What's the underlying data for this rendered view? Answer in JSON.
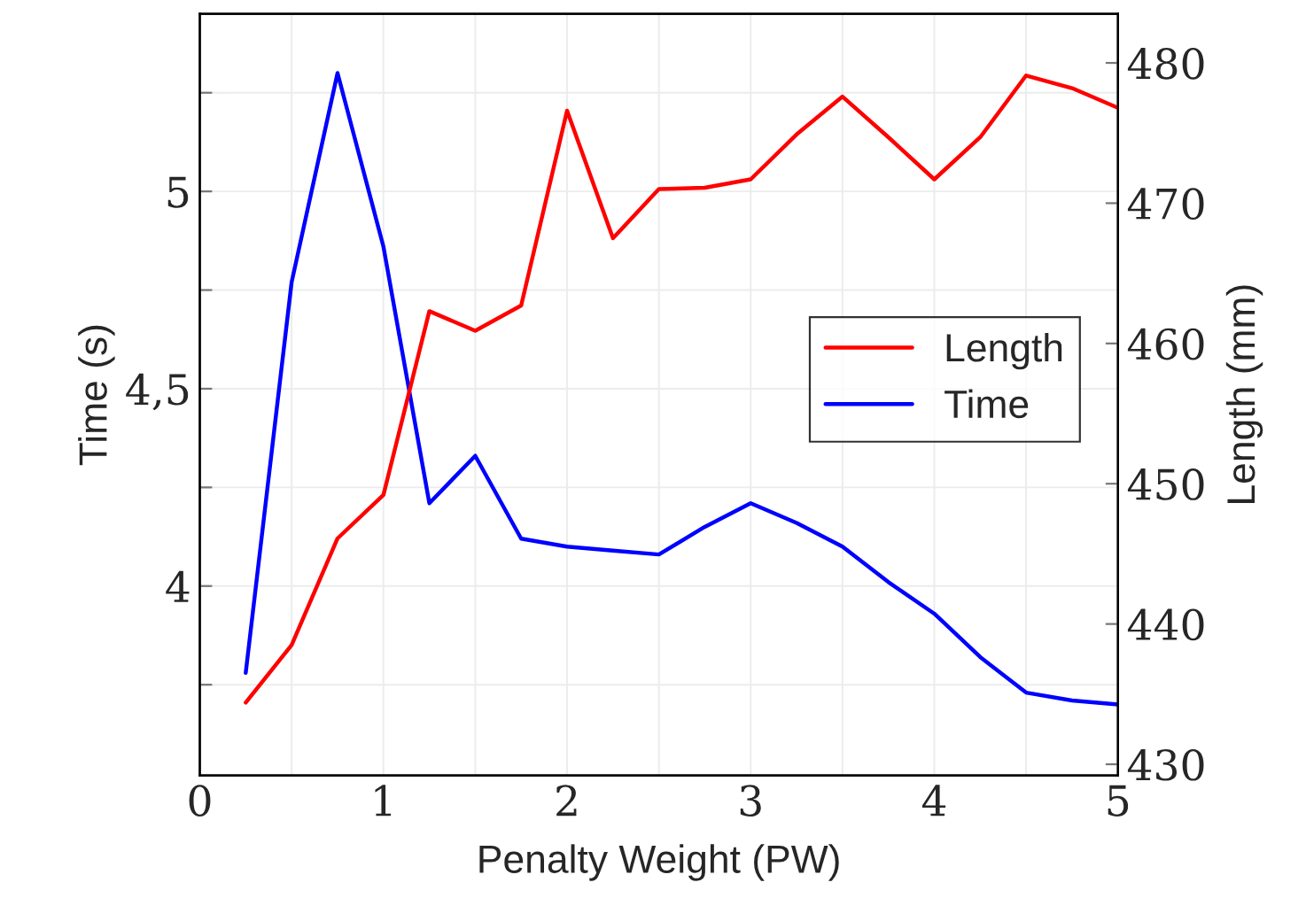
{
  "chart_data": {
    "type": "line",
    "xlabel": "Penalty Weight (PW)",
    "ylabel": "Time (s)",
    "y2label": "Length (mm)",
    "x": [
      0.25,
      0.5,
      0.75,
      1,
      1.25,
      1.5,
      1.75,
      2,
      2.25,
      2.5,
      2.75,
      3,
      3.25,
      3.5,
      3.75,
      4,
      4.25,
      4.5,
      4.75,
      5
    ],
    "series": [
      {
        "name": "Length",
        "color": "#ff0000",
        "axis": "y2",
        "values": [
          434.4,
          438.5,
          446.1,
          449.2,
          462.3,
          460.9,
          462.7,
          476.6,
          467.5,
          471.0,
          471.1,
          471.7,
          474.9,
          477.6,
          474.7,
          471.7,
          474.7,
          479.1,
          478.2,
          476.8
        ]
      },
      {
        "name": "Time",
        "color": "#0000ff",
        "values": [
          3.78,
          4.77,
          5.3,
          4.86,
          4.21,
          4.33,
          4.12,
          4.1,
          4.09,
          4.08,
          4.15,
          4.21,
          4.16,
          4.1,
          4.01,
          3.93,
          3.82,
          3.73,
          3.71,
          3.7
        ]
      }
    ],
    "xlim": [
      0,
      5
    ],
    "xticks": [
      0,
      {
        "value": 0.5,
        "label": null
      },
      1,
      {
        "value": 1.5,
        "label": null
      },
      2,
      {
        "value": 2.5,
        "label": null
      },
      3,
      {
        "value": 3.5,
        "label": null
      },
      4,
      {
        "value": 4.5,
        "label": null
      },
      5
    ],
    "ylim": [
      3.52,
      5.45
    ],
    "yticks": [
      {
        "value": 3.75,
        "label": null
      },
      4,
      {
        "value": 4.25,
        "label": null
      },
      {
        "value": 4.5,
        "label": "4,5"
      },
      {
        "value": 4.75,
        "label": null
      },
      5,
      {
        "value": 5.25,
        "label": null
      }
    ],
    "y2lim": [
      429.2,
      483.5
    ],
    "y2ticks": [
      430,
      440,
      450,
      460,
      470,
      480
    ],
    "grid": true,
    "legend": "right",
    "marker": "none",
    "line_style": "solid"
  }
}
